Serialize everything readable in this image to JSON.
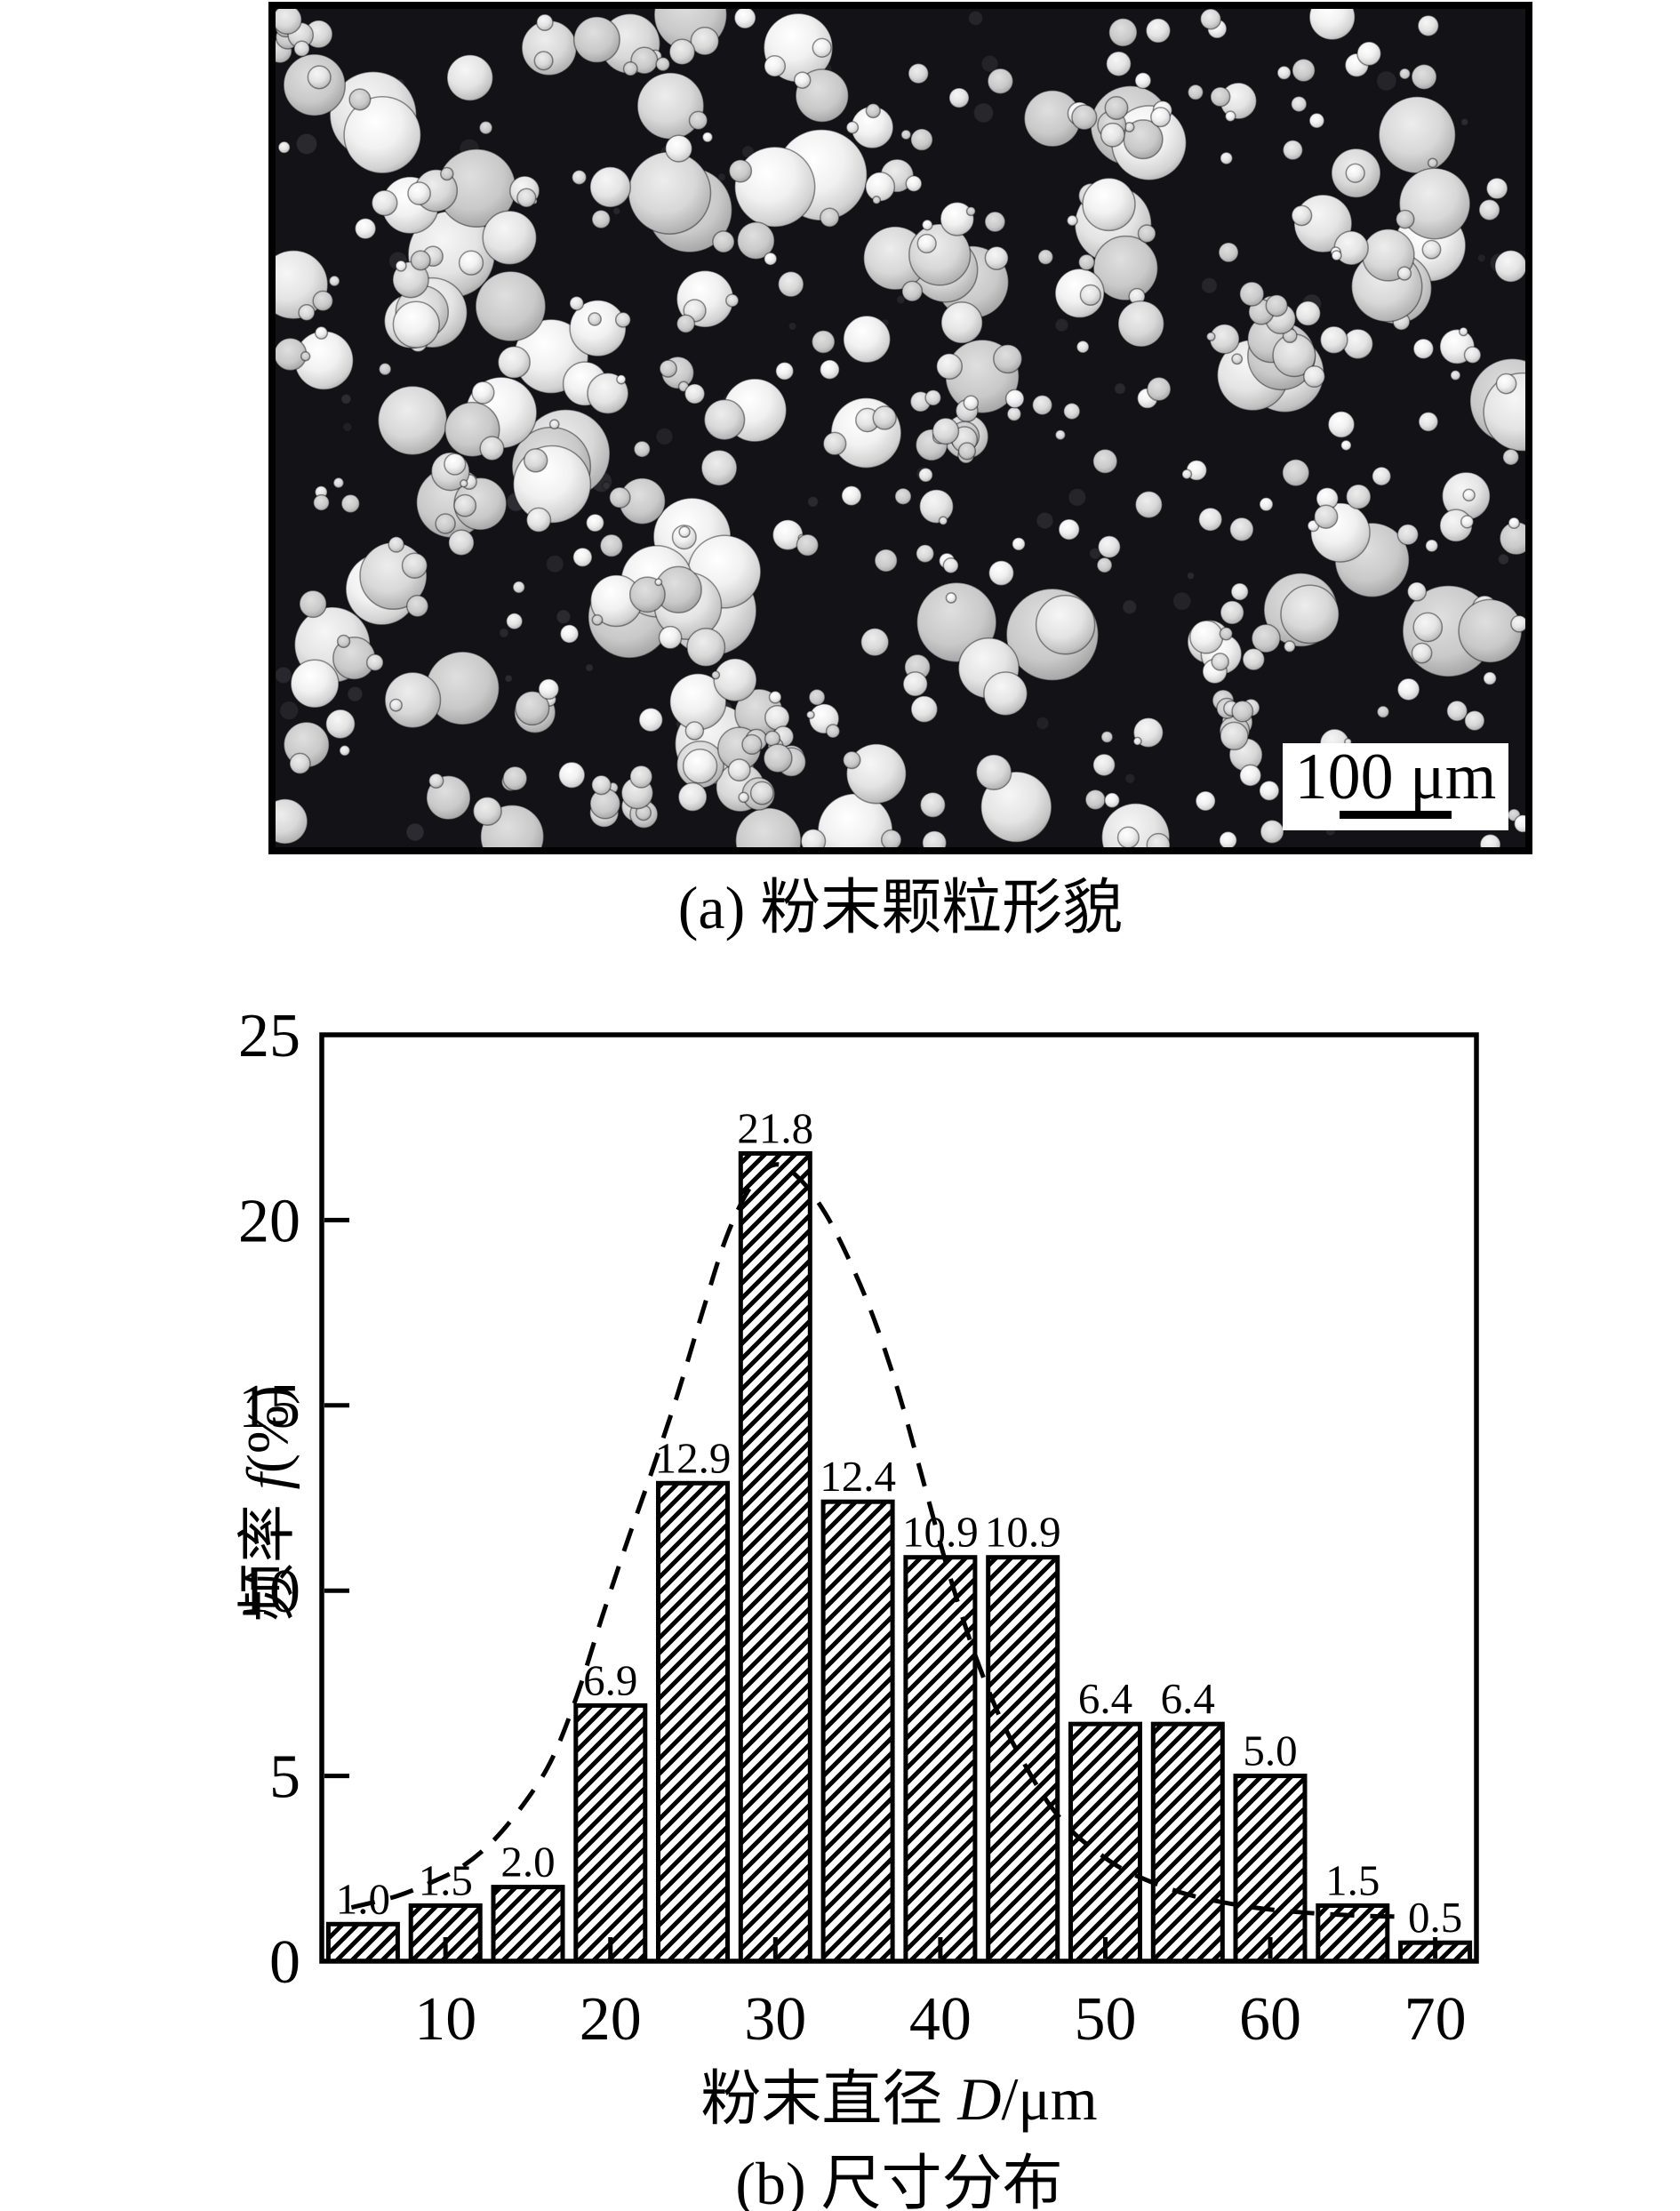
{
  "figure": {
    "background": "#ffffff",
    "ink": "#000000"
  },
  "panel_a": {
    "caption": "(a) 粉末颗粒形貌",
    "description": "SEM micrograph of spherical powder particles on a dark background",
    "scale_bar_label": "100 μm",
    "background_color": "#131317"
  },
  "panel_b": {
    "caption": "(b) 尺寸分布",
    "x_axis_title": {
      "prefix": "粉末直径 ",
      "symbol": "D",
      "suffix": "/μm"
    },
    "y_axis_title": {
      "prefix": "频率 ",
      "symbol": "f",
      "suffix": "(%)"
    }
  },
  "chart_data": {
    "type": "bar",
    "title": "",
    "xlabel": "粉末直径 D/μm",
    "ylabel": "频率 f(%)",
    "categories": [
      5,
      10,
      15,
      20,
      25,
      30,
      35,
      40,
      45,
      50,
      55,
      60,
      65,
      70
    ],
    "values": [
      1.0,
      1.5,
      2.0,
      6.9,
      12.9,
      21.8,
      12.4,
      10.9,
      10.9,
      6.4,
      6.4,
      5.0,
      1.5,
      0.5
    ],
    "bar_labels": [
      "1.0",
      "1.5",
      "2.0",
      "6.9",
      "12.9",
      "21.8",
      "12.4",
      "10.9",
      "10.9",
      "6.4",
      "6.4",
      "5.0",
      "1.5",
      "0.5"
    ],
    "bin_width": 5,
    "xlim": [
      2.5,
      72.5
    ],
    "ylim": [
      0,
      25
    ],
    "x_ticks": [
      "10",
      "20",
      "30",
      "40",
      "50",
      "60",
      "70"
    ],
    "y_ticks": [
      "0",
      "5",
      "10",
      "15",
      "20",
      "25"
    ],
    "grid": false,
    "legend": null,
    "bar_fill": "#ffffff",
    "bar_edge": "#000000",
    "bar_hatch": "forward-diagonal",
    "fit_curve": {
      "style": "dashed",
      "color": "#000000",
      "points": [
        [
          4.3,
          1.45
        ],
        [
          7,
          1.75
        ],
        [
          9,
          2.1
        ],
        [
          11,
          2.55
        ],
        [
          13,
          3.3
        ],
        [
          15,
          4.4
        ],
        [
          16.5,
          5.5
        ],
        [
          18,
          7.2
        ],
        [
          19.5,
          9.3
        ],
        [
          21,
          11.3
        ],
        [
          22.5,
          13.2
        ],
        [
          24,
          15.2
        ],
        [
          25.5,
          17.4
        ],
        [
          27,
          19.5
        ],
        [
          28.5,
          20.9
        ],
        [
          30,
          21.5
        ],
        [
          31.5,
          21.1
        ],
        [
          33,
          20.2
        ],
        [
          34.5,
          18.9
        ],
        [
          36,
          17.3
        ],
        [
          37.5,
          15.3
        ],
        [
          39,
          12.9
        ],
        [
          40.5,
          10.5
        ],
        [
          42,
          8.4
        ],
        [
          43.5,
          6.7
        ],
        [
          45,
          5.4
        ],
        [
          46.5,
          4.3
        ],
        [
          48,
          3.5
        ],
        [
          49.5,
          2.95
        ],
        [
          51,
          2.5
        ],
        [
          53,
          2.1
        ],
        [
          55,
          1.8
        ],
        [
          57,
          1.6
        ],
        [
          59,
          1.45
        ],
        [
          61,
          1.35
        ],
        [
          63.5,
          1.27
        ],
        [
          66,
          1.22
        ],
        [
          68,
          1.2
        ]
      ]
    }
  }
}
